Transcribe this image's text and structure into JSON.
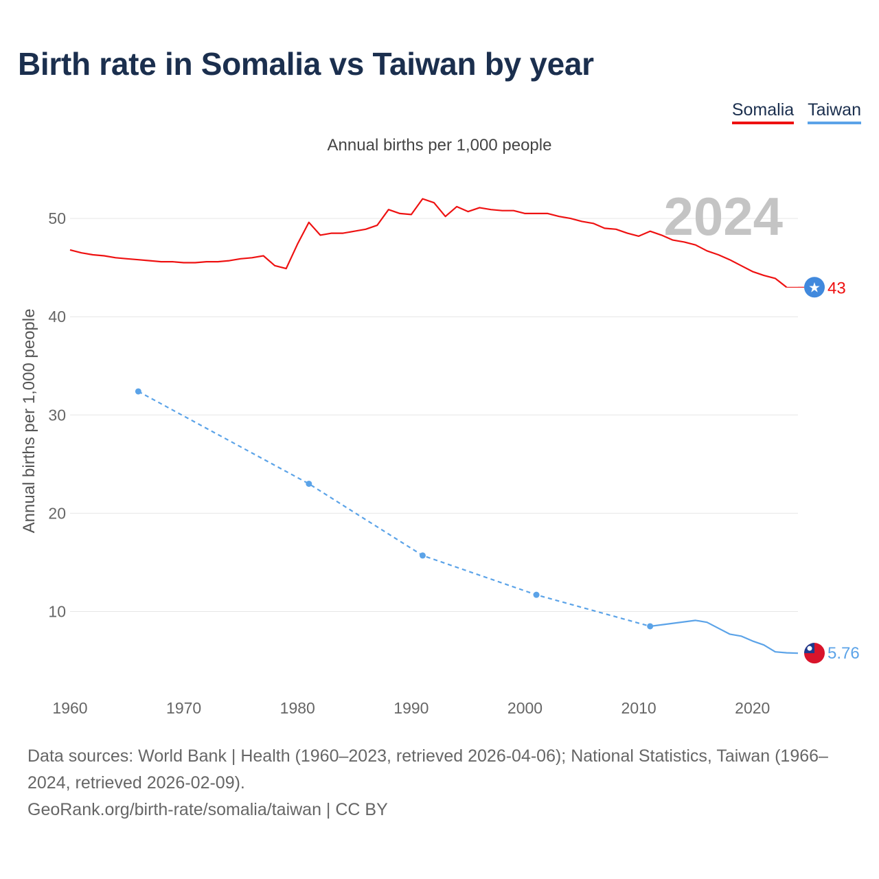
{
  "title": "Birth rate in Somalia vs Taiwan by year",
  "subtitle": "Annual births per 1,000 people",
  "legend": [
    {
      "label": "Somalia",
      "color": "#ee1111"
    },
    {
      "label": "Taiwan",
      "color": "#5ba3e8"
    }
  ],
  "year_label": "2024",
  "source_line": "Data sources: World Bank | Health (1960–2023, retrieved 2026-04-06); National Statistics, Taiwan (1966–2024, retrieved 2026-02-09).",
  "attribution_line": "GeoRank.org/birth-rate/somalia/taiwan | CC BY",
  "chart_data": {
    "type": "line",
    "title": "Birth rate in Somalia vs Taiwan by year",
    "xlabel": "",
    "ylabel": "Annual births per 1,000 people",
    "xlim": [
      1960,
      2024
    ],
    "ylim": [
      3,
      55
    ],
    "x_ticks": [
      1960,
      1970,
      1980,
      1990,
      2000,
      2010,
      2020
    ],
    "y_ticks": [
      10,
      20,
      30,
      40,
      50
    ],
    "grid": true,
    "series": [
      {
        "name": "Somalia",
        "color": "#ee1111",
        "end_label": "43",
        "end_value": 43,
        "x": [
          1960,
          1961,
          1962,
          1963,
          1964,
          1965,
          1966,
          1967,
          1968,
          1969,
          1970,
          1971,
          1972,
          1973,
          1974,
          1975,
          1976,
          1977,
          1978,
          1979,
          1980,
          1981,
          1982,
          1983,
          1984,
          1985,
          1986,
          1987,
          1988,
          1989,
          1990,
          1991,
          1992,
          1993,
          1994,
          1995,
          1996,
          1997,
          1998,
          1999,
          2000,
          2001,
          2002,
          2003,
          2004,
          2005,
          2006,
          2007,
          2008,
          2009,
          2010,
          2011,
          2012,
          2013,
          2014,
          2015,
          2016,
          2017,
          2018,
          2019,
          2020,
          2021,
          2022,
          2023,
          2024
        ],
        "values": [
          46.8,
          46.5,
          46.3,
          46.2,
          46.0,
          45.9,
          45.8,
          45.7,
          45.6,
          45.6,
          45.5,
          45.5,
          45.6,
          45.6,
          45.7,
          45.9,
          46.0,
          46.2,
          45.2,
          44.9,
          47.4,
          49.6,
          48.3,
          48.5,
          48.5,
          48.7,
          48.9,
          49.3,
          50.9,
          50.5,
          50.4,
          52.0,
          51.6,
          50.2,
          51.2,
          50.7,
          51.1,
          50.9,
          50.8,
          50.8,
          50.5,
          50.5,
          50.5,
          50.2,
          50.0,
          49.7,
          49.5,
          49.0,
          48.9,
          48.5,
          48.2,
          48.7,
          48.3,
          47.8,
          47.6,
          47.3,
          46.7,
          46.3,
          45.8,
          45.2,
          44.6,
          44.2,
          43.9,
          43.0,
          43.0
        ],
        "projected_from": 2023
      },
      {
        "name": "Taiwan",
        "color": "#5ba3e8",
        "end_label": "5.76",
        "end_value": 5.76,
        "x": [
          1966,
          1981,
          1991,
          2001,
          2011,
          2015,
          2016,
          2017,
          2018,
          2019,
          2020,
          2021,
          2022,
          2023,
          2024
        ],
        "values": [
          32.4,
          23.0,
          15.7,
          11.7,
          8.5,
          9.1,
          8.9,
          8.3,
          7.7,
          7.5,
          7.0,
          6.6,
          5.9,
          5.8,
          5.76
        ],
        "sparse_until": 2011
      }
    ]
  }
}
